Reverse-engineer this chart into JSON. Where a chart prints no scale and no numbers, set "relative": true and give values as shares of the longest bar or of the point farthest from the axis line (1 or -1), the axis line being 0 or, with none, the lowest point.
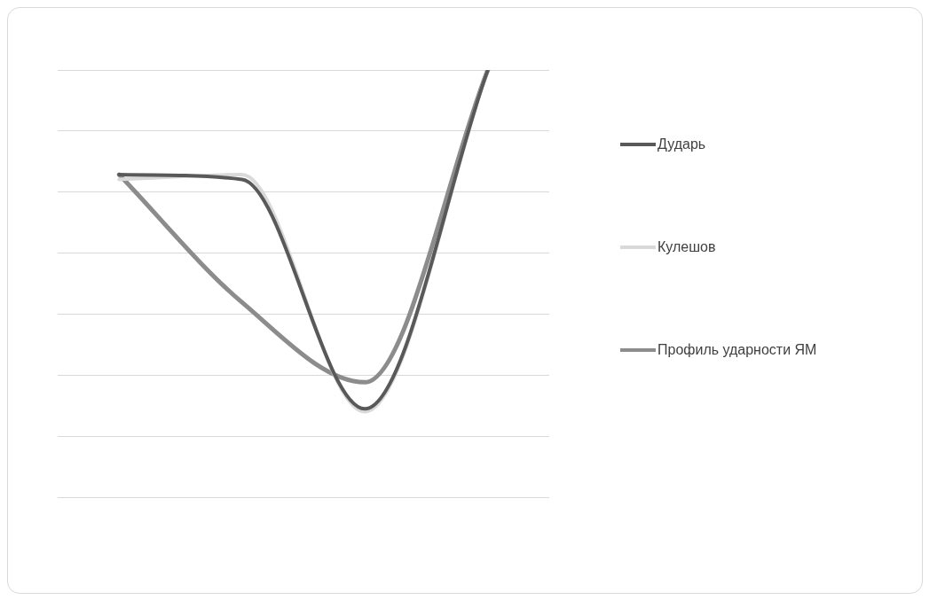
{
  "chart_data": {
    "type": "line",
    "relative": true,
    "categories": [
      null,
      null,
      null,
      null
    ],
    "grid": "y",
    "legend": "right",
    "marker": "none",
    "line_style": "solid",
    "series": [
      {
        "name": "Дударь",
        "color": "#595959",
        "values": [
          0.755,
          0.744,
          0.207,
          1
        ]
      },
      {
        "name": "Кулешов",
        "color": "#d9d9d9",
        "values": [
          0.744,
          0.755,
          0.2,
          1
        ]
      },
      {
        "name": "Профиль ударности ЯМ",
        "color": "#8c8c8c",
        "values": [
          0.755,
          0.456,
          0.269,
          1
        ]
      }
    ]
  }
}
